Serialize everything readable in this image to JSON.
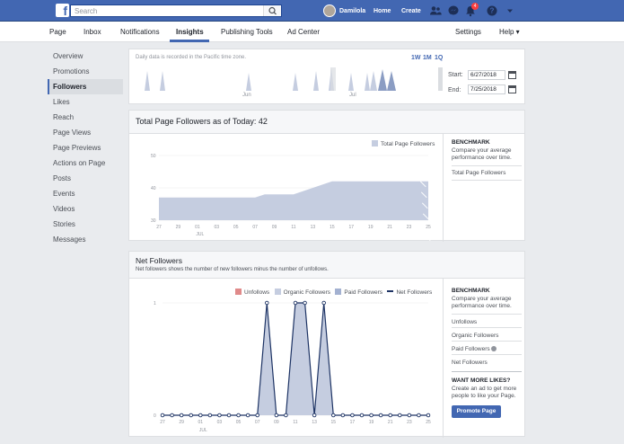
{
  "topbar": {
    "search_placeholder": "Search",
    "user_name": "Damilola",
    "home_label": "Home",
    "create_label": "Create",
    "notification_count": "4",
    "colors": {
      "bar": "#4267b2",
      "badge": "#fa3e3e"
    }
  },
  "subnav": {
    "page": "Page",
    "inbox": "Inbox",
    "notifications": "Notifications",
    "insights": "Insights",
    "publishing_tools": "Publishing Tools",
    "ad_center": "Ad Center",
    "settings": "Settings",
    "help": "Help ▾"
  },
  "sidebar": {
    "items": [
      {
        "label": "Overview"
      },
      {
        "label": "Promotions"
      },
      {
        "label": "Followers"
      },
      {
        "label": "Likes"
      },
      {
        "label": "Reach"
      },
      {
        "label": "Page Views"
      },
      {
        "label": "Page Previews"
      },
      {
        "label": "Actions on Page"
      },
      {
        "label": "Posts"
      },
      {
        "label": "Events"
      },
      {
        "label": "Videos"
      },
      {
        "label": "Stories"
      },
      {
        "label": "Messages"
      }
    ]
  },
  "timeline": {
    "note": "Daily data is recorded in the Pacific time zone.",
    "ranges": [
      "1W",
      "1M",
      "1Q"
    ],
    "month_labels": [
      "Jun",
      "Jul"
    ],
    "start_label": "Start:",
    "start_value": "6/27/2018",
    "end_label": "End:",
    "end_value": "7/25/2018"
  },
  "total_followers": {
    "title": "Total Page Followers as of Today: 42",
    "legend": "Total Page Followers",
    "benchmark_title": "BENCHMARK",
    "benchmark_desc": "Compare your average performance over time.",
    "benchmark_item": "Total Page Followers"
  },
  "net_followers": {
    "title": "Net Followers",
    "subtitle": "Net followers shows the number of new followers minus the number of unfollows.",
    "legend": [
      "Unfollows",
      "Organic Followers",
      "Paid Followers",
      "Net Followers"
    ],
    "benchmark_title": "BENCHMARK",
    "benchmark_desc": "Compare your average performance over time.",
    "benchmark_items": [
      "Unfollows",
      "Organic Followers",
      "Paid Followers",
      "Net Followers"
    ],
    "more_likes_title": "WANT MORE LIKES?",
    "more_likes_desc": "Create an ad to get more people to like your Page.",
    "promote_label": "Promote Page",
    "colors": {
      "unfollows": "#e08a8a",
      "organic": "#c5cde0",
      "paid": "#a3b1d1",
      "net": "#1d3364"
    }
  },
  "chart_data": [
    {
      "type": "area",
      "title": "Total Page Followers as of Today: 42",
      "x_ticks": [
        "27",
        "29",
        "01",
        "03",
        "05",
        "07",
        "09",
        "11",
        "13",
        "15",
        "17",
        "19",
        "21",
        "23",
        "25"
      ],
      "x_sub_label": "JUL",
      "y_ticks": [
        30,
        40,
        50
      ],
      "ylim": [
        30,
        50
      ],
      "series": [
        {
          "name": "Total Page Followers",
          "x": [
            "06-27",
            "06-28",
            "06-29",
            "06-30",
            "07-01",
            "07-02",
            "07-03",
            "07-04",
            "07-05",
            "07-06",
            "07-07",
            "07-08",
            "07-09",
            "07-10",
            "07-11",
            "07-12",
            "07-13",
            "07-14",
            "07-15",
            "07-16",
            "07-17",
            "07-18",
            "07-19",
            "07-20",
            "07-21",
            "07-22",
            "07-23",
            "07-24",
            "07-25"
          ],
          "values": [
            37,
            37,
            37,
            37,
            37,
            37,
            37,
            37,
            37,
            37,
            37,
            38,
            38,
            38,
            38,
            39,
            40,
            41,
            42,
            42,
            42,
            42,
            42,
            42,
            42,
            42,
            42,
            42,
            42
          ]
        }
      ]
    },
    {
      "type": "line",
      "title": "Net Followers",
      "x_ticks": [
        "27",
        "29",
        "01",
        "03",
        "05",
        "07",
        "09",
        "11",
        "13",
        "15",
        "17",
        "19",
        "21",
        "23",
        "25"
      ],
      "x_sub_label": "JUL",
      "y_ticks": [
        0,
        1
      ],
      "ylim": [
        0,
        1
      ],
      "series": [
        {
          "name": "Net Followers",
          "values": [
            0,
            0,
            0,
            0,
            0,
            0,
            0,
            0,
            0,
            0,
            0,
            1,
            0,
            0,
            1,
            1,
            0,
            1,
            0,
            0,
            0,
            0,
            0,
            0,
            0,
            0,
            0,
            0,
            0
          ]
        },
        {
          "name": "Organic Followers",
          "values": [
            0,
            0,
            0,
            0,
            0,
            0,
            0,
            0,
            0,
            0,
            0,
            1,
            0,
            0,
            1,
            1,
            0,
            1,
            0,
            0,
            0,
            0,
            0,
            0,
            0,
            0,
            0,
            0,
            0
          ]
        }
      ]
    }
  ]
}
